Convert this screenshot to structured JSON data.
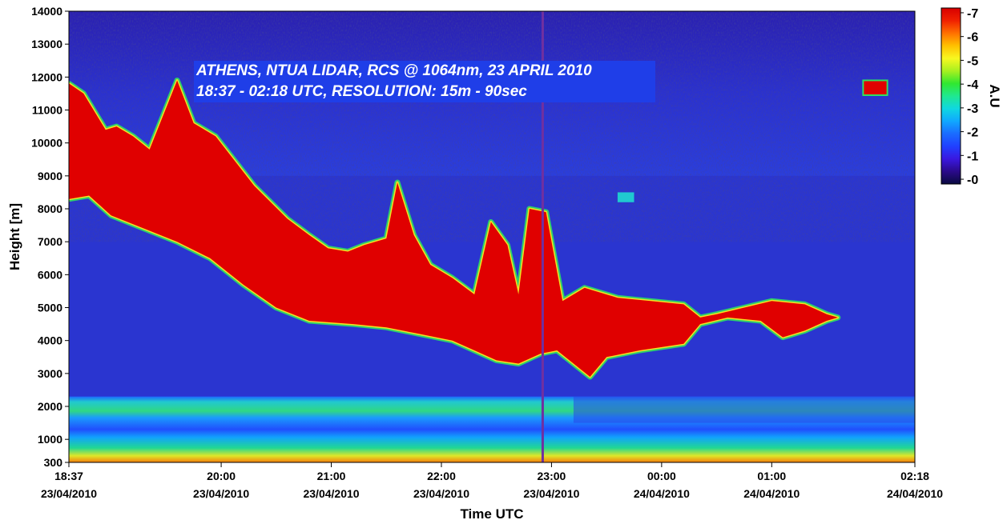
{
  "chart_data": {
    "type": "heatmap",
    "title_lines": [
      "ATHENS, NTUA LIDAR,  RCS @ 1064nm, 23 APRIL 2010",
      "18:37 - 02:18 UTC, RESOLUTION: 15m - 90sec"
    ],
    "xlabel": "Time UTC",
    "ylabel": "Height [m]",
    "x_ticks": [
      {
        "time": "18:37",
        "date": "23/04/2010",
        "hours": 18.617
      },
      {
        "time": "20:00",
        "date": "23/04/2010",
        "hours": 20.0
      },
      {
        "time": "21:00",
        "date": "23/04/2010",
        "hours": 21.0
      },
      {
        "time": "22:00",
        "date": "23/04/2010",
        "hours": 22.0
      },
      {
        "time": "23:00",
        "date": "23/04/2010",
        "hours": 23.0
      },
      {
        "time": "00:00",
        "date": "24/04/2010",
        "hours": 24.0
      },
      {
        "time": "01:00",
        "date": "24/04/2010",
        "hours": 25.0
      },
      {
        "time": "02:18",
        "date": "24/04/2010",
        "hours": 26.3
      }
    ],
    "xlim_hours": [
      18.617,
      26.3
    ],
    "y_ticks": [
      300,
      1000,
      2000,
      3000,
      4000,
      5000,
      6000,
      7000,
      8000,
      9000,
      10000,
      11000,
      12000,
      13000,
      14000
    ],
    "ylim": [
      300,
      14000
    ],
    "colorbar": {
      "label": "A.U",
      "ticks": [
        "7",
        "6",
        "5",
        "4",
        "3",
        "2",
        "1",
        "0"
      ],
      "range": [
        -0.2,
        7.2
      ],
      "colors": [
        "#0a0a40",
        "#2a0a8a",
        "#3a18e0",
        "#2040ff",
        "#1a6cff",
        "#10a8ff",
        "#10d8e0",
        "#20e890",
        "#30e830",
        "#a8f020",
        "#f8f820",
        "#ffc000",
        "#ff7000",
        "#f02000",
        "#d80000"
      ]
    },
    "background_color": "#2a35d0",
    "aerosol_color": "#e00000",
    "layers": [
      {
        "name": "dust layer (saturated)",
        "upper_boundary": [
          [
            18.62,
            11800
          ],
          [
            18.75,
            11500
          ],
          [
            18.95,
            10400
          ],
          [
            19.05,
            10500
          ],
          [
            19.2,
            10200
          ],
          [
            19.35,
            9800
          ],
          [
            19.6,
            11900
          ],
          [
            19.75,
            10600
          ],
          [
            19.95,
            10200
          ],
          [
            20.3,
            8700
          ],
          [
            20.6,
            7700
          ],
          [
            20.8,
            7200
          ],
          [
            20.97,
            6800
          ],
          [
            21.15,
            6700
          ],
          [
            21.3,
            6900
          ],
          [
            21.5,
            7100
          ],
          [
            21.6,
            8800
          ],
          [
            21.75,
            7200
          ],
          [
            21.9,
            6300
          ],
          [
            22.1,
            5900
          ],
          [
            22.3,
            5400
          ],
          [
            22.45,
            7600
          ],
          [
            22.6,
            6900
          ],
          [
            22.7,
            5400
          ],
          [
            22.8,
            8000
          ],
          [
            22.95,
            7900
          ],
          [
            23.1,
            5200
          ],
          [
            23.3,
            5600
          ],
          [
            23.6,
            5300
          ],
          [
            23.9,
            5200
          ],
          [
            24.2,
            5100
          ],
          [
            24.35,
            4700
          ],
          [
            24.5,
            4800
          ],
          [
            25.0,
            5200
          ],
          [
            25.3,
            5100
          ],
          [
            25.5,
            4800
          ],
          [
            25.6,
            4700
          ]
        ],
        "lower_boundary": [
          [
            18.62,
            8300
          ],
          [
            18.8,
            8400
          ],
          [
            19.0,
            7800
          ],
          [
            19.3,
            7400
          ],
          [
            19.6,
            7000
          ],
          [
            19.9,
            6500
          ],
          [
            20.2,
            5700
          ],
          [
            20.5,
            5000
          ],
          [
            20.8,
            4600
          ],
          [
            21.2,
            4500
          ],
          [
            21.5,
            4400
          ],
          [
            21.8,
            4200
          ],
          [
            22.1,
            4000
          ],
          [
            22.3,
            3700
          ],
          [
            22.5,
            3400
          ],
          [
            22.7,
            3300
          ],
          [
            22.9,
            3600
          ],
          [
            23.05,
            3700
          ],
          [
            23.2,
            3300
          ],
          [
            23.35,
            2900
          ],
          [
            23.5,
            3500
          ],
          [
            23.8,
            3700
          ],
          [
            24.0,
            3800
          ],
          [
            24.2,
            3900
          ],
          [
            24.35,
            4500
          ],
          [
            24.6,
            4700
          ],
          [
            24.9,
            4600
          ],
          [
            25.1,
            4100
          ],
          [
            25.3,
            4300
          ],
          [
            25.5,
            4600
          ],
          [
            25.6,
            4700
          ]
        ]
      },
      {
        "name": "planetary boundary layer",
        "top": 2300,
        "bottom": 300
      }
    ],
    "grid": false,
    "legend": "colorbar-right"
  }
}
